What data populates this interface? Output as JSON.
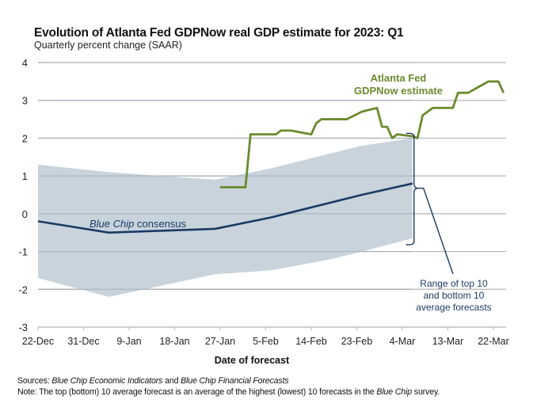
{
  "chart_data": {
    "type": "line",
    "title": "Evolution of Atlanta Fed GDPNow real GDP estimate for 2023: Q1",
    "subtitle": "Quarterly percent change (SAAR)",
    "xlabel": "Date of forecast",
    "ylabel": "",
    "ylim": [
      -3,
      4
    ],
    "yticks": [
      "4",
      "3",
      "2",
      "1",
      "0",
      "-1",
      "-2",
      "-3"
    ],
    "ytick_values": [
      4,
      3,
      2,
      1,
      0,
      -1,
      -2,
      -3
    ],
    "xlim_days": [
      0,
      93
    ],
    "x_origin_date": "22-Dec-2022",
    "xticks": [
      "22-Dec",
      "31-Dec",
      "9-Jan",
      "18-Jan",
      "27-Jan",
      "5-Feb",
      "14-Feb",
      "23-Feb",
      "4-Mar",
      "13-Mar",
      "22-Mar"
    ],
    "xtick_days": [
      0,
      9,
      18,
      27,
      36,
      45,
      54,
      63,
      72,
      81,
      90
    ],
    "grid": true,
    "series": [
      {
        "name": "Atlanta Fed GDPNow estimate",
        "label_lines": [
          "Atlanta Fed",
          "GDPNow estimate"
        ],
        "color": "#6b8a2e",
        "type": "line",
        "x_days": [
          36,
          41,
          42,
          47,
          48,
          50,
          54,
          55,
          56,
          61,
          64,
          67,
          68,
          69,
          70,
          71,
          74,
          75,
          76,
          78,
          82,
          83,
          85,
          89,
          91,
          92
        ],
        "values": [
          0.7,
          0.7,
          2.1,
          2.1,
          2.2,
          2.2,
          2.1,
          2.4,
          2.5,
          2.5,
          2.7,
          2.8,
          2.3,
          2.3,
          2.0,
          2.1,
          2.05,
          2.0,
          2.6,
          2.8,
          2.8,
          3.2,
          3.2,
          3.5,
          3.5,
          3.2
        ]
      },
      {
        "name": "Blue Chip consensus",
        "label_italic": "Blue Chip",
        "label_rest": " consensus",
        "color": "#1b3a63",
        "type": "line",
        "x_days": [
          0,
          14,
          35,
          46,
          64,
          74
        ],
        "values": [
          -0.2,
          -0.5,
          -0.4,
          -0.1,
          0.5,
          0.8
        ]
      },
      {
        "name": "Range of top 10 and bottom 10 average forecasts",
        "label_lines": [
          "Range of top 10",
          "and bottom 10",
          "average forecasts"
        ],
        "color": "#c5d1da",
        "type": "area",
        "x_days": [
          0,
          14,
          35,
          46,
          58,
          64,
          74
        ],
        "upper": [
          1.3,
          1.1,
          0.9,
          1.2,
          1.6,
          1.8,
          2.0
        ],
        "lower": [
          -1.7,
          -2.2,
          -1.6,
          -1.5,
          -1.2,
          -1.0,
          -0.65
        ]
      }
    ],
    "annotation_color": "#1b3a63"
  },
  "footer": {
    "sources_label": "Sources:",
    "sources_italic_1": "Blue Chip Economic Indicators",
    "sources_and": " and ",
    "sources_italic_2": "Blue Chip Financial Forecasts",
    "note_label": "Note:",
    "note_text": " The top (bottom) 10 average forecast is an average of the highest (lowest) 10 forecasts in the ",
    "note_italic": "Blue Chip",
    "note_end": " survey."
  }
}
